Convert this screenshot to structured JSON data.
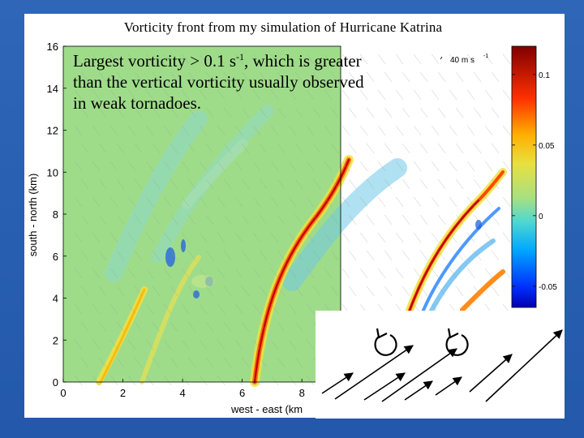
{
  "title": "Vorticity front from my simulation of Hurricane Katrina",
  "annotation": {
    "text_before": "Largest vorticity > 0.1 s",
    "superscript": "-1",
    "text_after": ", which is greater than the vertical vorticity usually observed in weak tornadoes."
  },
  "chart_data": {
    "type": "heatmap",
    "xlabel": "west - east (km",
    "ylabel": "south - north (km)",
    "xlim": [
      0,
      9.3
    ],
    "ylim": [
      0,
      16
    ],
    "x_ticks": [
      "0",
      "2",
      "4",
      "6",
      "8"
    ],
    "y_ticks": [
      "0",
      "2",
      "4",
      "6",
      "8",
      "10",
      "12",
      "14",
      "16"
    ],
    "vector_scale_label": "40 m s",
    "vector_scale_sup": "-1",
    "colorbar": {
      "range": [
        -0.065,
        0.12
      ],
      "ticks": [
        "0.1",
        "0.05",
        "0",
        "-0.05"
      ],
      "tick_values": [
        0.1,
        0.05,
        0,
        -0.05
      ],
      "colormap": [
        "#000080",
        "#0000ff",
        "#00a0ff",
        "#60d0c0",
        "#b0e070",
        "#f0e000",
        "#ff8000",
        "#ff0000",
        "#800000"
      ]
    },
    "background_color": "#9fdc8a"
  },
  "inset": {
    "rotation_symbols": 2,
    "arrows": 8
  }
}
